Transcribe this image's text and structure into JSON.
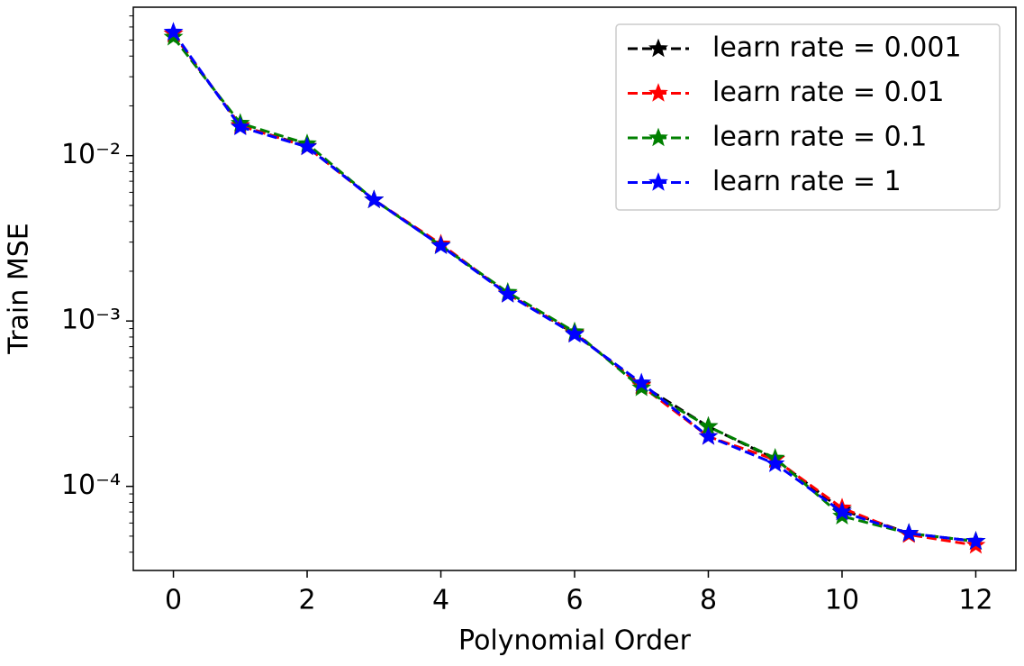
{
  "chart_data": {
    "type": "line",
    "x_label": "Polynomial Order",
    "y_label": "Train MSE",
    "x": [
      0,
      1,
      2,
      3,
      4,
      5,
      6,
      7,
      8,
      9,
      10,
      11,
      12
    ],
    "series": [
      {
        "name": "learn rate = 0.001",
        "color": "#000000",
        "values": [
          0.0545,
          0.0152,
          0.0114,
          0.0054,
          0.00287,
          0.00146,
          0.00084,
          0.00041,
          0.00023,
          0.000146,
          7.2e-05,
          5.2e-05,
          4.65e-05
        ]
      },
      {
        "name": "learn rate = 0.01",
        "color": "#ff0000",
        "values": [
          0.0545,
          0.0152,
          0.0113,
          0.0054,
          0.00292,
          0.00146,
          0.00085,
          0.000405,
          0.0002,
          0.000145,
          7.4e-05,
          5.1e-05,
          4.4e-05
        ]
      },
      {
        "name": "learn rate = 0.1",
        "color": "#008000",
        "values": [
          0.052,
          0.0157,
          0.0118,
          0.0054,
          0.00286,
          0.00149,
          0.00086,
          0.000394,
          0.00023,
          0.000148,
          6.6e-05,
          5.2e-05,
          4.65e-05
        ]
      },
      {
        "name": "learn rate = 1",
        "color": "#0000ff",
        "values": [
          0.0558,
          0.0149,
          0.0113,
          0.0054,
          0.00285,
          0.00145,
          0.00083,
          0.000422,
          0.0002,
          0.000137,
          7e-05,
          5.2e-05,
          4.65e-05
        ]
      }
    ],
    "xlim": [
      -0.6,
      12.6
    ],
    "xticks": [
      0,
      2,
      4,
      6,
      8,
      10,
      12
    ],
    "ylim": [
      3.1e-05,
      0.079
    ],
    "log_y": true,
    "yticks": [
      {
        "value": 0.0001,
        "label": "10⁻⁴"
      },
      {
        "value": 0.001,
        "label": "10⁻³"
      },
      {
        "value": 0.01,
        "label": "10⁻²"
      }
    ],
    "yminorticks": [
      4e-05,
      5e-05,
      6e-05,
      7e-05,
      8e-05,
      9e-05,
      0.0002,
      0.0003,
      0.0004,
      0.0005,
      0.0006,
      0.0007,
      0.0008,
      0.0009,
      0.002,
      0.003,
      0.004,
      0.005,
      0.006,
      0.007,
      0.008,
      0.009,
      0.02,
      0.03,
      0.04,
      0.05,
      0.06,
      0.07
    ],
    "legend": "upper right",
    "grid": false
  }
}
